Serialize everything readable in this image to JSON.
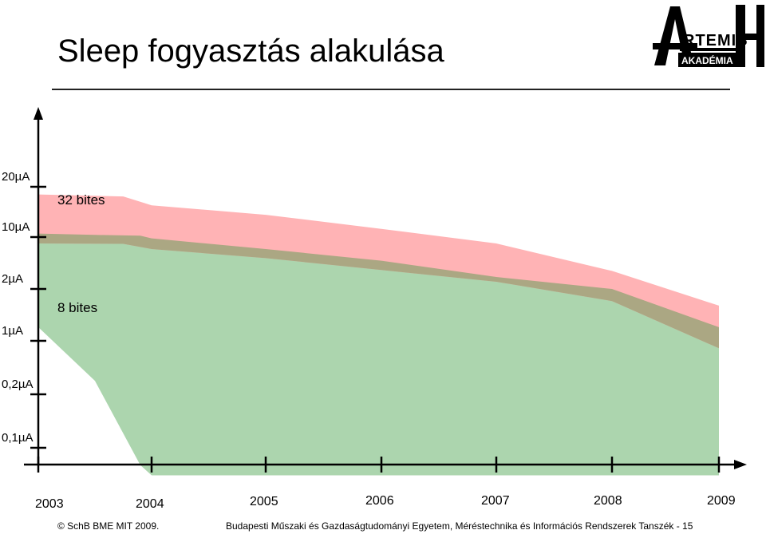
{
  "slide": {
    "title": "Sleep fogyasztás alakulása"
  },
  "logo": {
    "text_main": "RTEMIS",
    "text_sub": "AKADÉMIA"
  },
  "footer": {
    "copyright": "© SchB BME MIT  2009.",
    "institution": "Budapesti Műszaki és Gazdaságtudományi Egyetem, Méréstechnika és Információs Rendszerek Tanszék - 15"
  },
  "colors": {
    "bits32": "#ffb3b5",
    "bits8": "#acd5ae",
    "overlap": "#aba783",
    "axis": "#000000"
  },
  "chart_data": {
    "type": "area",
    "title": "",
    "xlabel": "",
    "ylabel": "",
    "y_scale": "log",
    "x_ticks": [
      "2003",
      "2004",
      "2005",
      "2006",
      "2007",
      "2008",
      "2009"
    ],
    "y_ticks": [
      "20µA",
      "10µA",
      "2µA",
      "1µA",
      "0,2µA",
      "0,1µA"
    ],
    "y_tick_values": [
      20,
      10,
      2,
      1,
      0.2,
      0.1
    ],
    "series": [
      {
        "name": "32 bites",
        "color": "#ffb3b5",
        "x": [
          2003,
          2003.75,
          2004,
          2005,
          2006,
          2007,
          2008,
          2009
        ],
        "upper": [
          18,
          17.5,
          15.5,
          13.6,
          11.2,
          8.2,
          3.5,
          1.6
        ],
        "lower": [
          8.2,
          8.1,
          6.9,
          5.2,
          3.6,
          2.5,
          1.7,
          0.8
        ]
      },
      {
        "name": "8 bites",
        "color": "#acd5ae",
        "x": [
          2003,
          2003.5,
          2003.9,
          2004,
          2005,
          2006,
          2007,
          2008,
          2009
        ],
        "upper": [
          10.5,
          10.3,
          10.2,
          9.6,
          6.9,
          4.8,
          2.9,
          2.0,
          1.2
        ],
        "lower": [
          1.2,
          0.3,
          0.08,
          0.07,
          0.07,
          0.07,
          0.07,
          0.07,
          0.07
        ]
      }
    ],
    "legend": "inline labels near left edge"
  }
}
